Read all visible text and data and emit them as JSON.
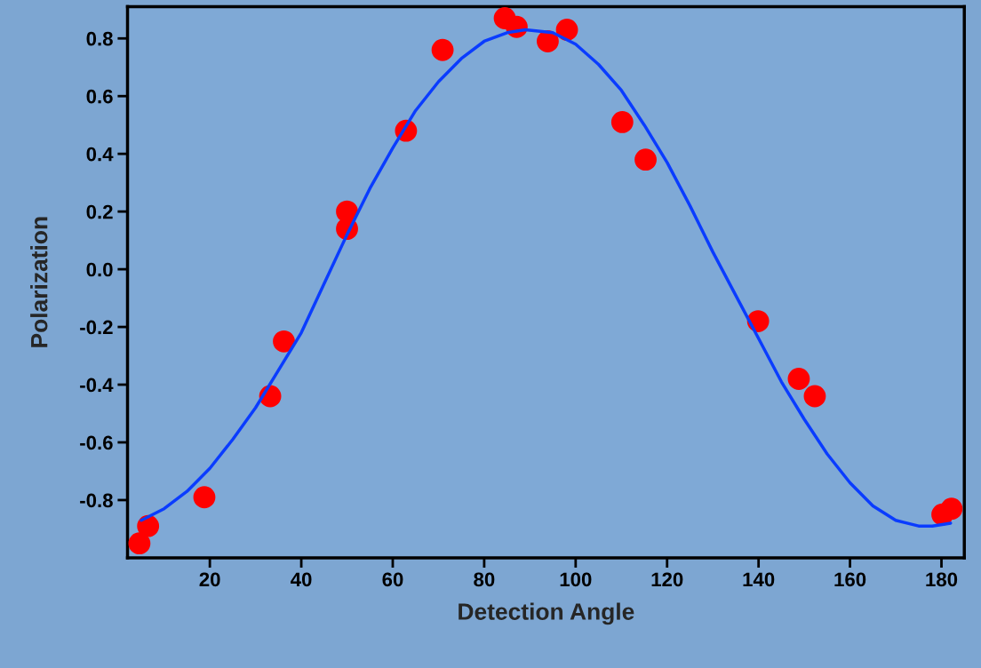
{
  "chart_data": {
    "type": "scatter",
    "xlabel": "Detection Angle",
    "ylabel": "Polarization",
    "xlim": [
      2,
      185
    ],
    "ylim": [
      -1.0,
      0.91
    ],
    "xticks": [
      20,
      40,
      60,
      80,
      100,
      120,
      140,
      160,
      180
    ],
    "yticks": [
      -0.8,
      -0.6,
      -0.4,
      -0.2,
      {
        "value": 0,
        "label": "0.0"
      },
      0.2,
      0.4,
      0.6,
      0.8
    ],
    "grid": false,
    "marker": "circle",
    "series": [
      {
        "color": "#ff0000",
        "x": [
          4.6,
          6.5,
          18.8,
          33.2,
          36.2,
          50,
          50,
          62.9,
          70.9,
          84.5,
          87.1,
          93.9,
          98.1,
          110.2,
          115.3,
          139.9,
          148.8,
          152.3,
          180.2,
          182.2
        ],
        "values": [
          -0.95,
          -0.89,
          -0.79,
          -0.44,
          -0.25,
          0.2,
          0.14,
          0.48,
          0.76,
          0.87,
          0.84,
          0.79,
          0.83,
          0.51,
          0.38,
          -0.18,
          -0.38,
          -0.44,
          -0.85,
          -0.83
        ]
      },
      {
        "type": "line",
        "color": "#0a3cff",
        "line_style": "solid",
        "marker": "none",
        "x": [
          5,
          10,
          15,
          20,
          25,
          30,
          35,
          40,
          45,
          50,
          55,
          60,
          65,
          70,
          75,
          80,
          85,
          89,
          95,
          100,
          105,
          110,
          115,
          120,
          125,
          130,
          135,
          140,
          145,
          150,
          155,
          160,
          165,
          170,
          175,
          178,
          182
        ],
        "values": [
          -0.87,
          -0.83,
          -0.77,
          -0.69,
          -0.59,
          -0.48,
          -0.35,
          -0.22,
          -0.05,
          0.12,
          0.28,
          0.42,
          0.55,
          0.65,
          0.73,
          0.79,
          0.82,
          0.83,
          0.82,
          0.78,
          0.71,
          0.62,
          0.5,
          0.37,
          0.22,
          0.06,
          -0.09,
          -0.24,
          -0.39,
          -0.52,
          -0.64,
          -0.74,
          -0.82,
          -0.87,
          -0.89,
          -0.89,
          -0.88
        ]
      }
    ]
  }
}
